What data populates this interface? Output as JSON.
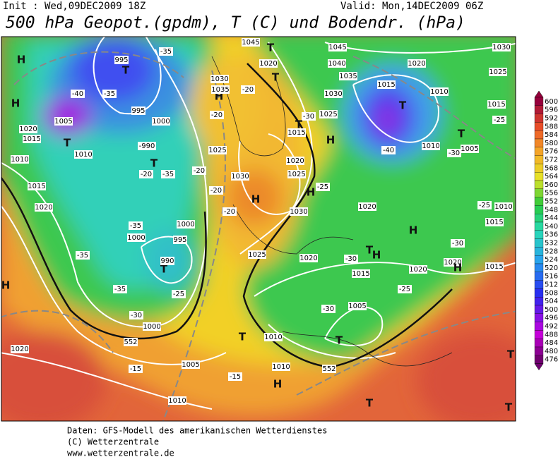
{
  "header": {
    "init": "Init : Wed,09DEC2009 18Z",
    "valid": "Valid: Mon,14DEC2009 06Z",
    "title": "500 hPa Geopot.(gpdm), T (C) und Bodendr. (hPa)"
  },
  "map_labels": [
    "H",
    "H",
    "T",
    "995",
    "-35",
    "-40",
    "-35",
    "1005",
    "T",
    "1020",
    "1015",
    "1010",
    "1010",
    "1015",
    "1020",
    "995",
    "1000",
    "-990",
    "T",
    "-35",
    "1000",
    "995",
    "1000",
    "-35",
    "T",
    "990",
    "-25",
    "-35",
    "-30",
    "1000",
    "-35",
    "H",
    "1020",
    "-15",
    "1005",
    "1010",
    "T",
    "1010",
    "1010",
    "H",
    "-15",
    "T",
    "H",
    "1030",
    "1025",
    "H",
    "1035",
    "1030",
    "-20",
    "-20",
    "1020",
    "T",
    "1045",
    "T",
    "1045",
    "1040",
    "1035",
    "1030",
    "1025",
    "-30",
    "T",
    "1015",
    "H",
    "1020",
    "1025",
    "H",
    "-25",
    "1030",
    "1020",
    "1025",
    "1020",
    "-30",
    "T",
    "H",
    "1015",
    "-30",
    "1005",
    "T",
    "1020",
    "1020",
    "H",
    "-25",
    "H",
    "-30",
    "1015",
    "-25",
    "1010",
    "1015",
    "T",
    "1010",
    "1020",
    "1025",
    "1030",
    "-40",
    "1010",
    "-30",
    "T",
    "1005",
    "1015",
    "-25",
    "552",
    "552",
    "T",
    "T",
    "-20",
    "-20",
    "-20",
    "-20",
    "1015"
  ],
  "colorbar": [
    600,
    596,
    592,
    588,
    584,
    580,
    576,
    572,
    568,
    564,
    560,
    556,
    552,
    548,
    544,
    540,
    536,
    532,
    528,
    524,
    520,
    516,
    512,
    508,
    504,
    500,
    496,
    492,
    488,
    484,
    480,
    476
  ],
  "footer": [
    "Daten: GFS-Modell des amerikanischen Wetterdienstes",
    "(C) Wetterzentrale",
    "www.wetterzentrale.de"
  ]
}
